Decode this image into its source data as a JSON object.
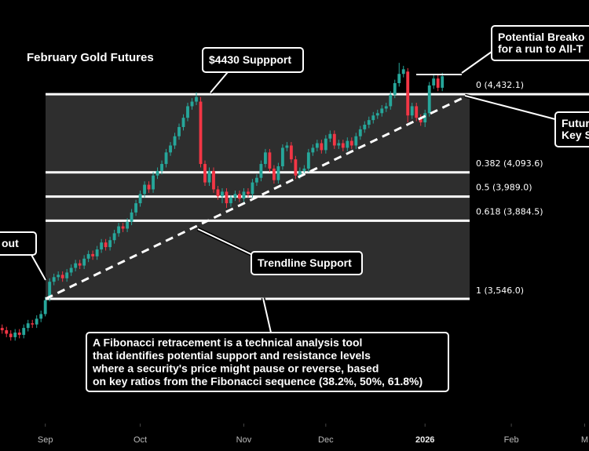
{
  "chart_data": {
    "type": "candlestick",
    "title": "February Gold Futures",
    "up_color": "#26a69a",
    "down_color": "#f23645",
    "xlim": [
      -0.5,
      136
    ],
    "xticks": [
      {
        "value": 10,
        "label": "Sep"
      },
      {
        "value": 32,
        "label": "Oct"
      },
      {
        "value": 56,
        "label": "Nov"
      },
      {
        "value": 75,
        "label": "Dec"
      },
      {
        "value": 98,
        "label": "2026"
      },
      {
        "value": 118,
        "label": "Feb"
      },
      {
        "value": 135,
        "label": "M"
      }
    ],
    "ylim": [
      3006,
      4840
    ],
    "series": {
      "open": [
        3420,
        3410,
        3395,
        3380,
        3400,
        3390,
        3420,
        3440,
        3435,
        3460,
        3480,
        3550,
        3620,
        3640,
        3650,
        3635,
        3660,
        3680,
        3700,
        3690,
        3720,
        3740,
        3730,
        3760,
        3790,
        3770,
        3800,
        3830,
        3860,
        3850,
        3880,
        3920,
        3960,
        4000,
        4040,
        4020,
        4080,
        4100,
        4130,
        4180,
        4210,
        4250,
        4290,
        4330,
        4380,
        4400,
        4400,
        4130,
        4050,
        4100,
        4020,
        3990,
        4010,
        3960,
        3985,
        4000,
        3980,
        4010,
        4000,
        4050,
        4070,
        4130,
        4180,
        4110,
        4060,
        4120,
        4200,
        4210,
        4150,
        4080,
        4100,
        4110,
        4180,
        4200,
        4220,
        4190,
        4240,
        4260,
        4210,
        4220,
        4200,
        4230,
        4210,
        4250,
        4280,
        4300,
        4320,
        4340,
        4350,
        4370,
        4380,
        4430,
        4480,
        4520,
        4530,
        4340,
        4380,
        4330,
        4310,
        4350,
        4470,
        4500,
        4460
      ],
      "high": [
        3435,
        3425,
        3410,
        3415,
        3415,
        3435,
        3455,
        3455,
        3475,
        3495,
        3555,
        3635,
        3655,
        3665,
        3665,
        3675,
        3695,
        3715,
        3715,
        3735,
        3755,
        3755,
        3775,
        3805,
        3805,
        3815,
        3845,
        3875,
        3875,
        3895,
        3935,
        3975,
        4015,
        4055,
        4055,
        4095,
        4115,
        4145,
        4195,
        4225,
        4265,
        4305,
        4345,
        4395,
        4415,
        4440,
        4420,
        4145,
        4115,
        4115,
        4035,
        4025,
        4025,
        3995,
        4015,
        4015,
        4025,
        4025,
        4065,
        4085,
        4145,
        4195,
        4195,
        4125,
        4135,
        4215,
        4225,
        4225,
        4165,
        4115,
        4125,
        4195,
        4215,
        4235,
        4235,
        4255,
        4275,
        4275,
        4235,
        4235,
        4245,
        4245,
        4265,
        4295,
        4315,
        4335,
        4355,
        4365,
        4385,
        4395,
        4445,
        4495,
        4568,
        4555,
        4545,
        4395,
        4395,
        4345,
        4365,
        4485,
        4515,
        4515,
        4525
      ],
      "low": [
        3395,
        3380,
        3365,
        3365,
        3375,
        3375,
        3405,
        3420,
        3420,
        3445,
        3470,
        3535,
        3605,
        3625,
        3620,
        3620,
        3645,
        3665,
        3675,
        3675,
        3705,
        3715,
        3715,
        3745,
        3755,
        3755,
        3785,
        3815,
        3835,
        3835,
        3865,
        3905,
        3945,
        3985,
        4005,
        4005,
        4065,
        4085,
        4115,
        4165,
        4195,
        4235,
        4275,
        4315,
        4365,
        4385,
        4115,
        4035,
        4035,
        4005,
        3975,
        3960,
        3940,
        3945,
        3970,
        3965,
        3965,
        3985,
        3985,
        4035,
        4055,
        4115,
        4095,
        4045,
        4045,
        4105,
        4185,
        4135,
        4065,
        4065,
        4085,
        4095,
        4165,
        4185,
        4175,
        4175,
        4225,
        4195,
        4195,
        4185,
        4185,
        4195,
        4195,
        4235,
        4265,
        4285,
        4305,
        4325,
        4335,
        4355,
        4365,
        4415,
        4465,
        4505,
        4310,
        4325,
        4315,
        4295,
        4290,
        4335,
        4455,
        4445,
        4445
      ],
      "close": [
        3410,
        3395,
        3380,
        3400,
        3390,
        3420,
        3440,
        3435,
        3460,
        3480,
        3540,
        3620,
        3640,
        3650,
        3635,
        3660,
        3680,
        3700,
        3690,
        3720,
        3740,
        3730,
        3760,
        3790,
        3770,
        3800,
        3830,
        3860,
        3850,
        3880,
        3920,
        3960,
        4000,
        4040,
        4020,
        4080,
        4100,
        4130,
        4180,
        4210,
        4250,
        4290,
        4330,
        4380,
        4400,
        4420,
        4130,
        4050,
        4100,
        4020,
        3990,
        4010,
        3960,
        3985,
        4000,
        3980,
        4010,
        4000,
        4050,
        4070,
        4130,
        4180,
        4110,
        4060,
        4120,
        4200,
        4210,
        4150,
        4080,
        4100,
        4110,
        4180,
        4200,
        4220,
        4190,
        4240,
        4260,
        4210,
        4220,
        4200,
        4230,
        4210,
        4250,
        4280,
        4300,
        4320,
        4340,
        4350,
        4370,
        4380,
        4430,
        4480,
        4520,
        4540,
        4340,
        4380,
        4330,
        4310,
        4350,
        4470,
        4500,
        4460,
        4510
      ]
    },
    "fib_levels": [
      {
        "value": 4432.1,
        "label": "0 (4,432.1)"
      },
      {
        "value": 4093.6,
        "label": "0.382 (4,093.6)"
      },
      {
        "value": 3989.0,
        "label": "0.5 (3,989.0)"
      },
      {
        "value": 3884.5,
        "label": "0.618 (3,884.5)"
      },
      {
        "value": 3546.0,
        "label": "1 (3,546.0)"
      }
    ],
    "annotations": [
      {
        "lines": [
          "$4430 Suppport"
        ]
      },
      {
        "lines": [
          "Trendline Support"
        ]
      },
      {
        "lines": [
          "out"
        ]
      },
      {
        "lines": [
          "A Fibonacci retracement is a technical analysis tool",
          "that identifies potential support and resistance levels",
          "where a security's price might pause or reverse, based",
          "on key ratios from the Fibonacci sequence (38.2%, 50%, 61.8%)"
        ]
      },
      {
        "lines": [
          "Potential Breako",
          "for a run to All-T"
        ]
      },
      {
        "lines": [
          "Futur",
          "Key S"
        ]
      }
    ]
  }
}
